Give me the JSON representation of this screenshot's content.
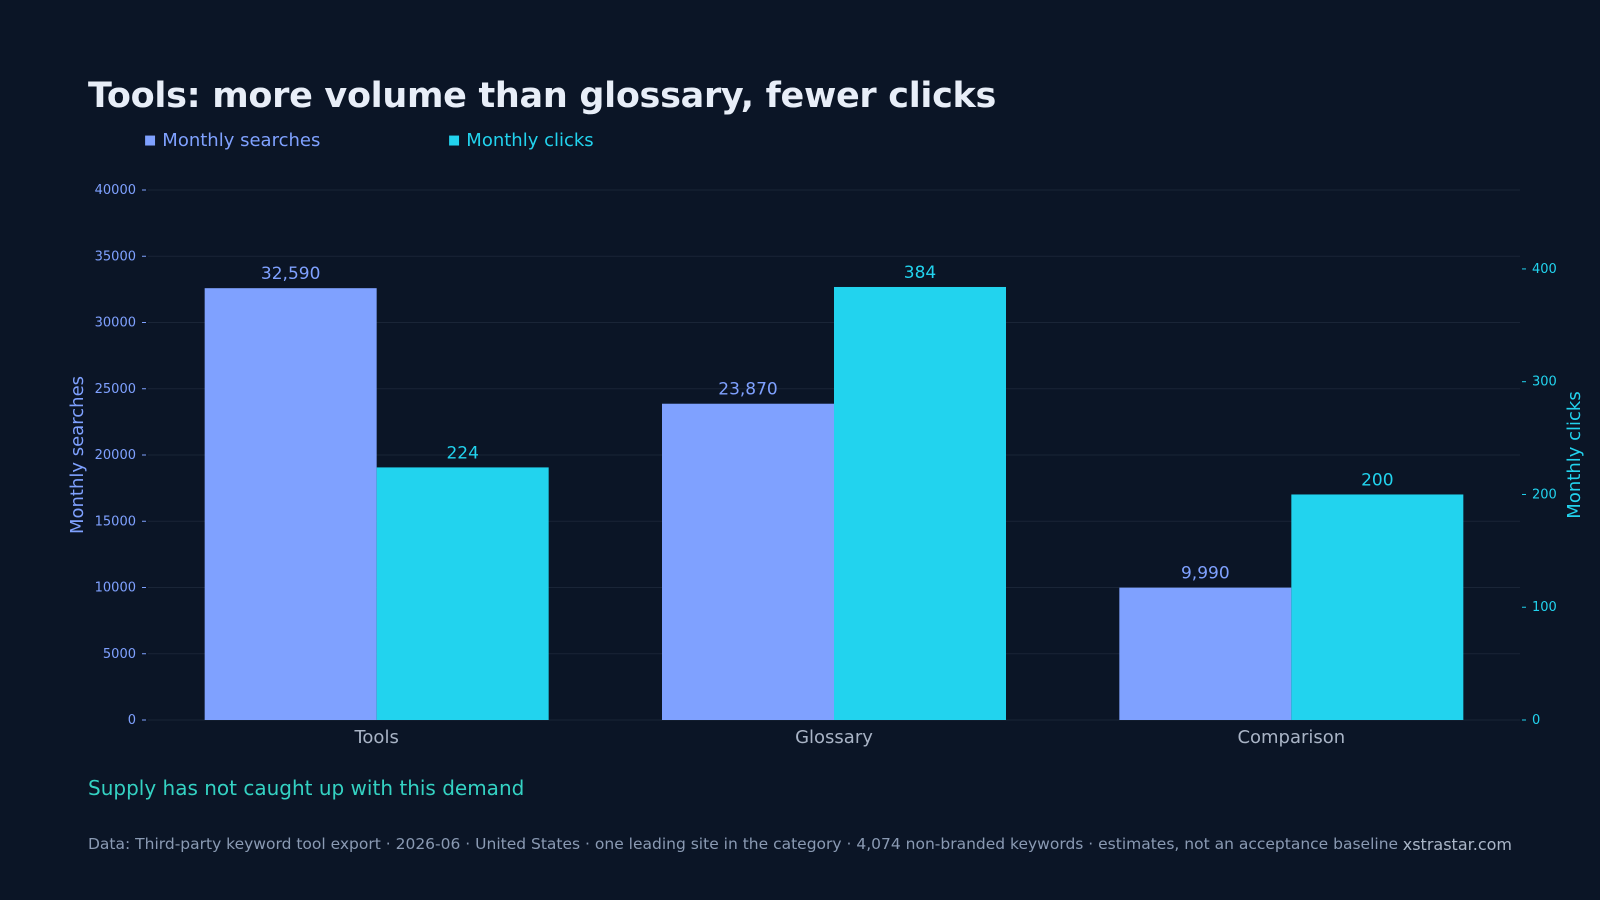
{
  "title": "Tools: more volume than glossary, fewer clicks",
  "subtitle": "Supply has not caught up with this demand",
  "footer": {
    "source": "Data: Third-party keyword tool export · 2026-06 · United States · one leading site in the category · 4,074 non-branded keywords · estimates, not an acceptance baseline",
    "brand": "xstrastar.com"
  },
  "legend": [
    {
      "label": "Monthly searches",
      "color": "#7fa1ff",
      "swatch": "■"
    },
    {
      "label": "Monthly clicks",
      "color": "#22d3ee",
      "swatch": "■"
    }
  ],
  "colors": {
    "background": "#0b1526",
    "searches": "#7fa1ff",
    "clicks": "#22d3ee",
    "category_label": "#a9b4c6",
    "grid": "#1a2537"
  },
  "chart_data": {
    "type": "bar",
    "categories": [
      "Tools",
      "Glossary",
      "Comparison"
    ],
    "series": [
      {
        "name": "Monthly searches",
        "axis": "left",
        "values": [
          32590,
          23870,
          9990
        ],
        "labels": [
          "32,590",
          "23,870",
          "9,990"
        ]
      },
      {
        "name": "Monthly clicks",
        "axis": "right",
        "values": [
          224,
          384,
          200
        ],
        "labels": [
          "224",
          "384",
          "200"
        ]
      }
    ],
    "y_left": {
      "label": "Monthly searches",
      "range": [
        0,
        40000
      ],
      "ticks": [
        0,
        5000,
        10000,
        15000,
        20000,
        25000,
        30000,
        35000,
        40000
      ]
    },
    "y_right": {
      "label": "Monthly clicks",
      "range": [
        0,
        470
      ],
      "ticks": [
        0,
        100,
        200,
        300,
        400
      ]
    },
    "grid": true,
    "legend_position": "top-left"
  }
}
